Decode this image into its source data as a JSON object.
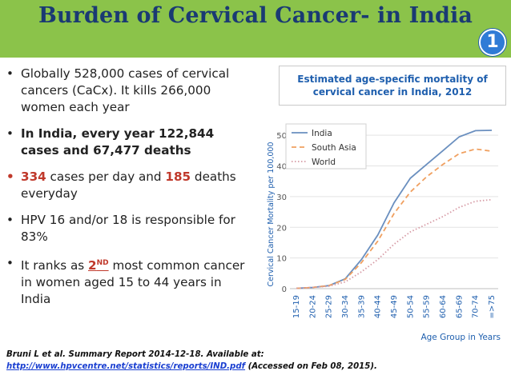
{
  "slide": {
    "title": "Burden of Cervical Cancer- in India",
    "badge": "1",
    "accent_color": "#8bc34a",
    "title_color": "#1a3a73"
  },
  "bullets": [
    {
      "text": "Globally 528,000 cases of cervical cancers (CaCx). It kills 266,000 women each year"
    },
    {
      "text": "In India, every year 122,844 cases and 67,477 deaths"
    },
    {
      "cases": "334",
      "mid": " cases  per day and ",
      "deaths": "185",
      "end": " deaths everyday"
    },
    {
      "text": "HPV 16 and/or 18  is responsible for 83%"
    },
    {
      "pre": "It ranks as ",
      "rank": "2",
      "sup": "ND",
      "post": " most common cancer in women aged 15 to 44 years in India"
    }
  ],
  "reference": {
    "line1": "Bruni L et al. Summary Report 2014-12-18. Available at:",
    "url": "http://www.hpvcentre.net/statistics/reports/IND.pdf",
    "accessed": "(Accessed on Feb 08, 2015)."
  },
  "chart_data": {
    "type": "line",
    "title": "Estimated age-specific mortality of cervical cancer in India, 2012",
    "xlabel": "Age Group in Years",
    "ylabel": "Cervical Cancer Mortality per 100,000",
    "categories": [
      "15-19",
      "20-24",
      "25-29",
      "30-34",
      "35-39",
      "40-44",
      "45-49",
      "50-54",
      "55-59",
      "60-64",
      "65-69",
      "70-74",
      "=>75"
    ],
    "ylim": [
      0,
      55
    ],
    "yticks": [
      0,
      10,
      20,
      30,
      40,
      50
    ],
    "legend_position": "top-left",
    "series": [
      {
        "name": "India",
        "color": "#6a8fbf",
        "dash": "",
        "values": [
          0.1,
          0.4,
          1.0,
          3.2,
          9.5,
          17.5,
          28.0,
          36.0,
          40.5,
          45.0,
          49.5,
          51.5,
          51.6
        ]
      },
      {
        "name": "South Asia",
        "color": "#f0a060",
        "dash": "6,4",
        "values": [
          0.1,
          0.4,
          1.0,
          3.0,
          8.5,
          15.5,
          24.5,
          31.5,
          36.5,
          40.5,
          44.0,
          45.5,
          44.8
        ]
      },
      {
        "name": "World",
        "color": "#d69ba5",
        "dash": "1.5,2.5",
        "values": [
          0.1,
          0.4,
          0.8,
          2.2,
          5.5,
          9.5,
          14.5,
          18.5,
          21.0,
          23.5,
          26.5,
          28.5,
          29.0
        ]
      }
    ]
  }
}
